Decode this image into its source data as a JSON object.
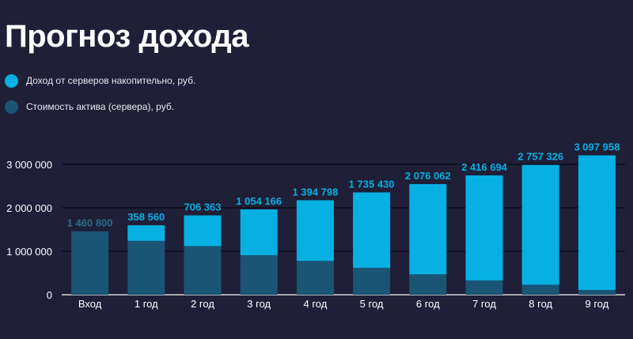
{
  "title": "Прогноз дохода",
  "colors": {
    "background": "#1f1f38",
    "income": "#06b0e3",
    "asset": "#1a5576",
    "asset_label": "#2e6b8c",
    "grid": "#0c0c18",
    "axis": "#ffffff"
  },
  "chart_data": {
    "type": "bar",
    "stacked": true,
    "categories": [
      "Вход",
      "1 год",
      "2 год",
      "3 год",
      "4 год",
      "5 год",
      "6 год",
      "7 год",
      "8 год",
      "9 год"
    ],
    "series": [
      {
        "name": "Стоимость актива (сервера), руб.",
        "values": [
          1460800,
          1240000,
          1120000,
          910000,
          780000,
          620000,
          470000,
          330000,
          230000,
          110000
        ]
      },
      {
        "name": "Доход от серверов накопительно, руб.",
        "values": [
          0,
          358560,
          706363,
          1054166,
          1394798,
          1735430,
          2076062,
          2416694,
          2757326,
          3097958
        ]
      }
    ],
    "data_labels": [
      "1 460 800",
      "358 560",
      "706 363",
      "1 054 166",
      "1 394 798",
      "1 735 430",
      "2 076 062",
      "2 416 694",
      "2 757 326",
      "3 097 958"
    ],
    "y_ticks": [
      0,
      1000000,
      2000000,
      3000000
    ],
    "y_tick_labels": [
      "0",
      "1 000 000",
      "2 000 000",
      "3 000 000"
    ],
    "ylim": [
      0,
      3250000
    ],
    "grid": true,
    "legend_position": "top-left"
  }
}
